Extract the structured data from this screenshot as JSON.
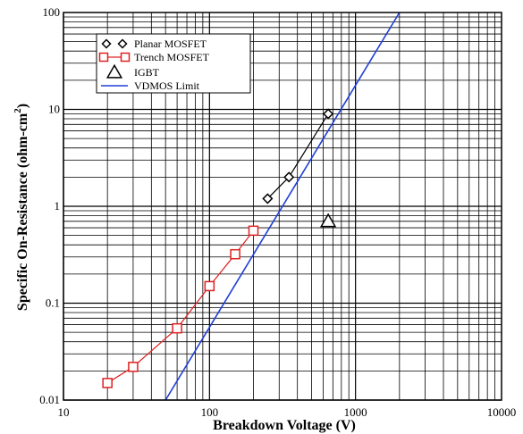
{
  "chart_data": {
    "type": "line",
    "title": "",
    "xlabel": "Breakdown Voltage (V)",
    "ylabel_main": "Specific On-Resistance (ohm-cm",
    "ylabel_sup": "2",
    "ylabel_close": ")",
    "xscale": "log",
    "yscale": "log",
    "xlim": [
      10,
      10000
    ],
    "ylim": [
      0.01,
      100
    ],
    "x_tick_labels": [
      "10",
      "100",
      "1000",
      "10000"
    ],
    "y_tick_labels": [
      "0.01",
      "0.1",
      "1",
      "10",
      "100"
    ],
    "grid": true,
    "legend_position": "top-left",
    "series": [
      {
        "name": "Planar MOSFET",
        "marker": "diamond",
        "color": "#000000",
        "x": [
          250,
          350,
          650
        ],
        "y": [
          1.2,
          2.0,
          9.0
        ]
      },
      {
        "name": "Trench MOSFET",
        "marker": "square",
        "color": "#e02020",
        "x": [
          20,
          30,
          60,
          100,
          150,
          200
        ],
        "y": [
          0.015,
          0.022,
          0.055,
          0.15,
          0.32,
          0.56
        ]
      },
      {
        "name": "IGBT",
        "marker": "triangle",
        "color": "#000000",
        "x": [
          650
        ],
        "y": [
          0.7
        ]
      },
      {
        "name": "VDMOS Limit",
        "marker": "none",
        "color": "#1f3fd6",
        "x": [
          50,
          2000
        ],
        "y": [
          0.01,
          100
        ]
      }
    ]
  }
}
